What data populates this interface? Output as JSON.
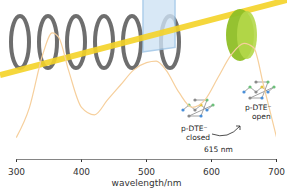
{
  "chart_data": {
    "type": "line",
    "xlabel": "wavelength/nm",
    "x": [
      300,
      320,
      340,
      355,
      365,
      380,
      400,
      420,
      440,
      460,
      480,
      500,
      515,
      530,
      550,
      570,
      590,
      610,
      630,
      650,
      665,
      680,
      700
    ],
    "values": [
      0.15,
      0.35,
      0.7,
      0.85,
      0.82,
      0.6,
      0.35,
      0.3,
      0.4,
      0.5,
      0.6,
      0.65,
      0.66,
      0.6,
      0.45,
      0.35,
      0.4,
      0.55,
      0.7,
      0.78,
      0.75,
      0.5,
      0.15
    ],
    "color": "#f6cf9c",
    "xlim": [
      300,
      700
    ],
    "xticks": [
      300,
      400,
      500,
      600,
      700
    ],
    "ylim": [
      0,
      1
    ],
    "tick_labels": "x",
    "annotations": [
      "p-DTE⁻",
      "closed",
      "615 nm",
      "p-DTE⁻",
      "open"
    ]
  }
}
